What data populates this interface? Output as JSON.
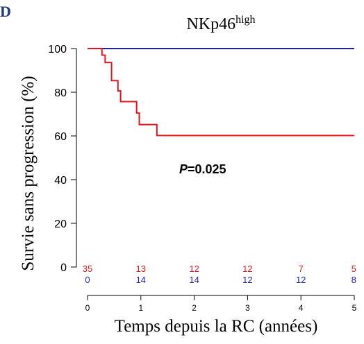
{
  "panel_label": "D",
  "title_base": "NKp46",
  "title_sup": "high",
  "colors": {
    "red": "#e8141b",
    "blue": "#1b1bc8",
    "label": "#1f3a6e"
  },
  "chart_data": {
    "type": "line",
    "xlabel": "Temps depuis la RC (années)",
    "ylabel": "Survie sans progression (%)",
    "xlim": [
      0,
      5
    ],
    "ylim": [
      0,
      100
    ],
    "x_ticks": [
      0,
      1,
      2,
      3,
      4,
      5
    ],
    "y_ticks": [
      0,
      20,
      40,
      60,
      80,
      100
    ],
    "annotation": {
      "italic": "P",
      "text": "=0.025"
    },
    "series": [
      {
        "color": "#1b1bc8",
        "step": true,
        "x": [
          0,
          5
        ],
        "y": [
          100,
          100
        ]
      },
      {
        "color": "#e8141b",
        "step": true,
        "x": [
          0,
          0.27,
          0.33,
          0.45,
          0.57,
          0.62,
          0.67,
          0.92,
          0.97,
          1.3,
          5
        ],
        "y": [
          100,
          97,
          93.6,
          85.3,
          80.6,
          75.7,
          75.7,
          70.5,
          65.2,
          60.2,
          60.2
        ]
      }
    ],
    "at_risk": [
      {
        "color": "#e8141b",
        "values": [
          "35",
          "13",
          "12",
          "12",
          "7",
          "5"
        ]
      },
      {
        "color": "#1b1bc8",
        "values": [
          "0",
          "14",
          "14",
          "12",
          "12",
          "8"
        ]
      }
    ]
  }
}
